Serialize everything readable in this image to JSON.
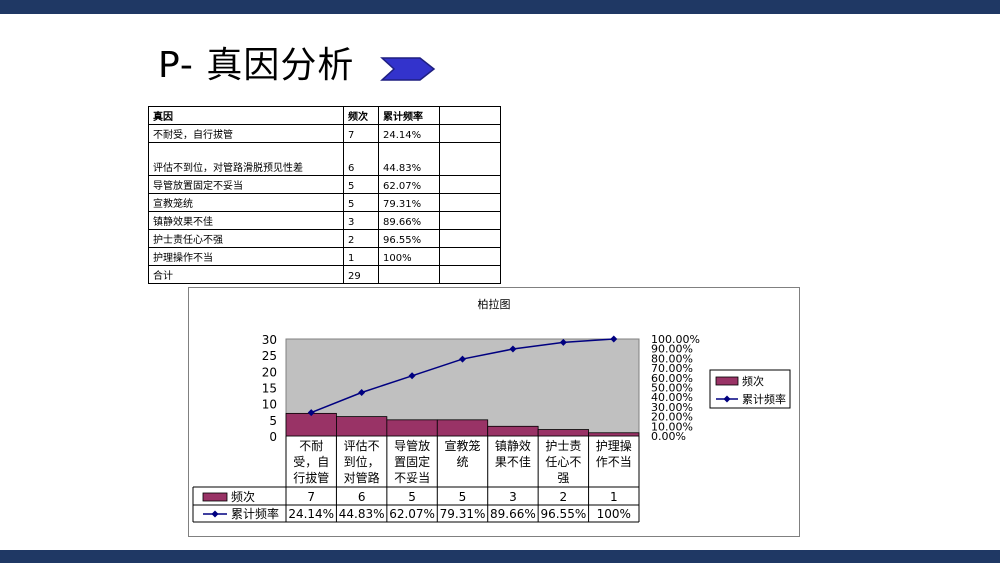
{
  "slide": {
    "title": "P- 真因分析"
  },
  "source_table": {
    "headers": [
      "真因",
      "频次",
      "累计频率"
    ],
    "rows": [
      [
        "不耐受，自行拔管",
        "7",
        "24.14%"
      ],
      [
        "评估不到位，对管路滑脱预见性差",
        "6",
        "44.83%"
      ],
      [
        "导管放置固定不妥当",
        "5",
        "62.07%"
      ],
      [
        "宣教笼统",
        "5",
        "79.31%"
      ],
      [
        "镇静效果不佳",
        "3",
        "89.66%"
      ],
      [
        "护士责任心不强",
        "2",
        "96.55%"
      ],
      [
        "护理操作不当",
        "1",
        "100%"
      ],
      [
        "合计",
        "29",
        ""
      ]
    ]
  },
  "chart_data": {
    "type": "bar",
    "title": "柏拉图",
    "categories": [
      [
        "不耐",
        "受，自",
        "行拔管"
      ],
      [
        "评估不",
        "到位，",
        "对管路"
      ],
      [
        "导管放",
        "置固定",
        "不妥当"
      ],
      [
        "宣教笼",
        "统"
      ],
      [
        "镇静效",
        "果不佳"
      ],
      [
        "护士责",
        "任心不",
        "强"
      ],
      [
        "护理操",
        "作不当"
      ]
    ],
    "series": [
      {
        "name": "频次",
        "type": "bar",
        "values": [
          7,
          6,
          5,
          5,
          3,
          2,
          1
        ],
        "labels": [
          "7",
          "6",
          "5",
          "5",
          "3",
          "2",
          "1"
        ],
        "color": "#993366"
      },
      {
        "name": "累计频率",
        "type": "line",
        "axis": "right",
        "values": [
          24.14,
          44.83,
          62.07,
          79.31,
          89.66,
          96.55,
          100
        ],
        "labels": [
          "24.14%",
          "44.83%",
          "62.07%",
          "79.31%",
          "89.66%",
          "96.55%",
          "100%"
        ],
        "color": "#000080"
      }
    ],
    "ylim": [
      0,
      30
    ],
    "y_ticks": [
      "30",
      "25",
      "20",
      "15",
      "10",
      "5",
      "0"
    ],
    "y2lim": [
      0,
      100
    ],
    "y2_ticks": [
      "100.00%",
      "90.00%",
      "80.00%",
      "70.00%",
      "60.00%",
      "50.00%",
      "40.00%",
      "30.00%",
      "20.00%",
      "10.00%",
      "0.00%"
    ],
    "plot_background": "#c0c0c0",
    "legend_position": "right",
    "data_table": true
  }
}
